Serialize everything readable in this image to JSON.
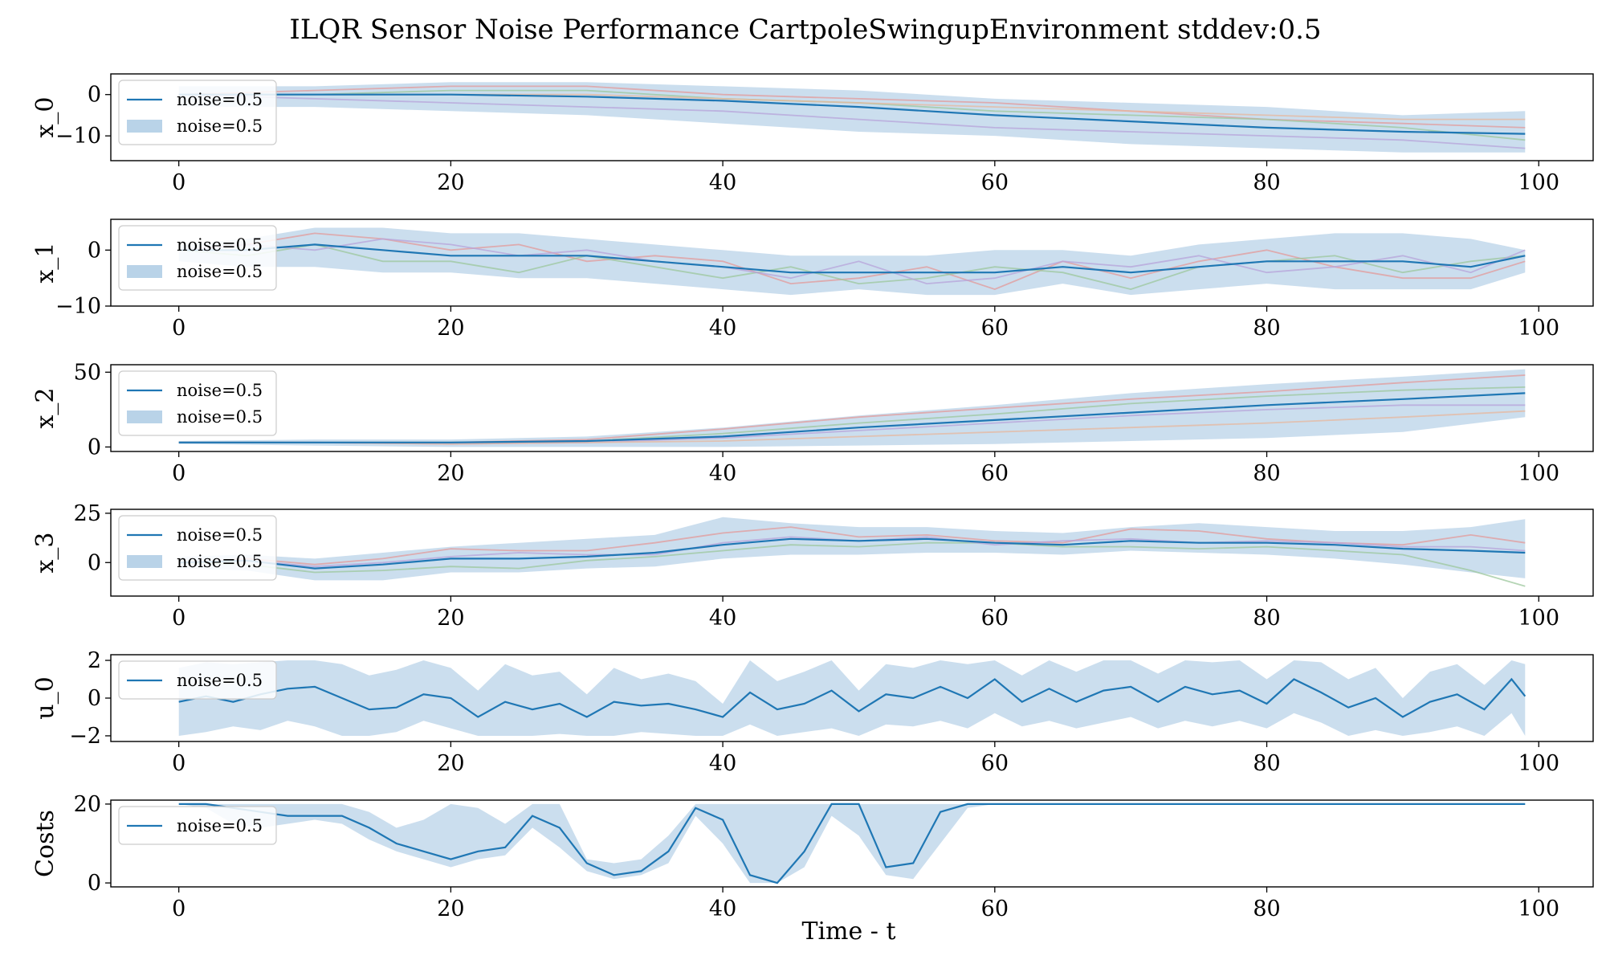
{
  "title": "ILQR Sensor Noise Performance CartpoleSwingupEnvironment stddev:0.5",
  "xlabel": "Time - t",
  "colors": {
    "mean_line": "#1f77b4",
    "band_fill": "#b9d3e8",
    "runs": [
      "#e39a9a",
      "#9cc79c",
      "#b7a3d9",
      "#e7b79e",
      "#c9b48f"
    ]
  },
  "chart_data": [
    {
      "type": "line",
      "ylabel": "x_0",
      "xlim": [
        -5,
        104
      ],
      "ylim": [
        -16,
        5
      ],
      "xticks": [
        0,
        20,
        40,
        60,
        80,
        100
      ],
      "yticks": [
        -10,
        0
      ],
      "legend": {
        "position": "upper-left",
        "entries": [
          {
            "label": "noise=0.5",
            "kind": "line"
          },
          {
            "label": "noise=0.5",
            "kind": "band"
          }
        ]
      },
      "x": [
        0,
        10,
        20,
        30,
        40,
        50,
        60,
        70,
        80,
        90,
        99
      ],
      "mean": [
        0,
        0,
        0,
        -0.5,
        -1.5,
        -3,
        -5,
        -6.5,
        -8,
        -9,
        -9.5
      ],
      "band_low": [
        -3,
        -3,
        -4,
        -5,
        -7,
        -9,
        -10,
        -12,
        -13,
        -14,
        -14
      ],
      "band_high": [
        2,
        2,
        3,
        3,
        2,
        1,
        -1,
        -2,
        -3,
        -5,
        -4
      ],
      "runs": [
        [
          0,
          1,
          2,
          2,
          0,
          -1,
          -2,
          -4,
          -6,
          -7,
          -8
        ],
        [
          0,
          0,
          1,
          1,
          -1,
          -2,
          -4,
          -5,
          -6,
          -8,
          -11
        ],
        [
          0,
          -1,
          -2,
          -3,
          -4,
          -6,
          -8,
          -9,
          -10,
          -11,
          -13
        ],
        [
          0,
          0,
          0,
          0,
          -1,
          -2,
          -3,
          -4,
          -5,
          -6,
          -6
        ]
      ]
    },
    {
      "type": "line",
      "ylabel": "x_1",
      "xlim": [
        -5,
        104
      ],
      "ylim": [
        -10,
        5.5
      ],
      "xticks": [
        0,
        20,
        40,
        60,
        80,
        100
      ],
      "yticks": [
        -10,
        0
      ],
      "legend": {
        "position": "upper-left",
        "entries": [
          {
            "label": "noise=0.5",
            "kind": "line"
          },
          {
            "label": "noise=0.5",
            "kind": "band"
          }
        ]
      },
      "x": [
        0,
        5,
        10,
        15,
        20,
        25,
        30,
        35,
        40,
        45,
        50,
        55,
        60,
        65,
        70,
        75,
        80,
        85,
        90,
        95,
        99
      ],
      "mean": [
        0,
        0,
        1,
        0,
        -1,
        -1,
        -1,
        -2,
        -3,
        -4,
        -4,
        -4,
        -4,
        -3,
        -4,
        -3,
        -2,
        -2,
        -2,
        -3,
        -1
      ],
      "band_low": [
        -2,
        -3,
        -3,
        -4,
        -4,
        -5,
        -5,
        -6,
        -7,
        -8,
        -7,
        -8,
        -8,
        -6,
        -8,
        -7,
        -6,
        -7,
        -7,
        -7,
        -4
      ],
      "band_high": [
        1,
        2,
        4,
        4,
        3,
        3,
        2,
        1,
        0,
        -1,
        -1,
        -1,
        0,
        0,
        -1,
        1,
        2,
        3,
        3,
        2,
        0
      ],
      "runs": [
        [
          0,
          1,
          3,
          2,
          0,
          1,
          -2,
          -1,
          -2,
          -6,
          -5,
          -3,
          -7,
          -2,
          -5,
          -2,
          0,
          -3,
          -5,
          -5,
          -2
        ],
        [
          0,
          -1,
          1,
          -2,
          -2,
          -4,
          -1,
          -3,
          -5,
          -3,
          -6,
          -5,
          -3,
          -4,
          -7,
          -3,
          -2,
          -1,
          -4,
          -2,
          -1
        ],
        [
          0,
          1,
          0,
          2,
          1,
          -1,
          0,
          -2,
          -3,
          -5,
          -2,
          -6,
          -5,
          -2,
          -3,
          -1,
          -4,
          -3,
          -1,
          -4,
          0
        ]
      ]
    },
    {
      "type": "line",
      "ylabel": "x_2",
      "xlim": [
        -5,
        104
      ],
      "ylim": [
        -3,
        55
      ],
      "xticks": [
        0,
        20,
        40,
        60,
        80,
        100
      ],
      "yticks": [
        0,
        50
      ],
      "legend": {
        "position": "upper-left",
        "entries": [
          {
            "label": "noise=0.5",
            "kind": "line"
          },
          {
            "label": "noise=0.5",
            "kind": "band"
          }
        ]
      },
      "x": [
        0,
        10,
        20,
        30,
        40,
        50,
        60,
        70,
        80,
        90,
        99
      ],
      "mean": [
        3,
        3,
        3,
        4,
        7,
        13,
        18,
        23,
        28,
        32,
        36
      ],
      "band_low": [
        2,
        1,
        0,
        0,
        0,
        1,
        2,
        4,
        6,
        10,
        20
      ],
      "band_high": [
        4,
        5,
        5,
        7,
        13,
        21,
        28,
        36,
        42,
        47,
        52
      ],
      "runs": [
        [
          3,
          3,
          3,
          5,
          12,
          20,
          26,
          32,
          37,
          43,
          48
        ],
        [
          3,
          3,
          3,
          4,
          9,
          16,
          22,
          29,
          34,
          38,
          40
        ],
        [
          3,
          3,
          2,
          3,
          6,
          11,
          16,
          21,
          25,
          28,
          28
        ],
        [
          3,
          3,
          2,
          3,
          4,
          7,
          10,
          13,
          16,
          20,
          24
        ]
      ]
    },
    {
      "type": "line",
      "ylabel": "x_3",
      "xlim": [
        -5,
        104
      ],
      "ylim": [
        -17,
        27
      ],
      "xticks": [
        0,
        20,
        40,
        60,
        80,
        100
      ],
      "yticks": [
        0,
        25
      ],
      "legend": {
        "position": "upper-left",
        "entries": [
          {
            "label": "noise=0.5",
            "kind": "line"
          },
          {
            "label": "noise=0.5",
            "kind": "band"
          }
        ]
      },
      "x": [
        0,
        5,
        10,
        15,
        20,
        25,
        30,
        35,
        40,
        45,
        50,
        55,
        60,
        65,
        70,
        75,
        80,
        85,
        90,
        95,
        99
      ],
      "mean": [
        0,
        1,
        -3,
        -1,
        2,
        2,
        3,
        5,
        9,
        12,
        11,
        12,
        10,
        9,
        11,
        10,
        10,
        9,
        7,
        6,
        5
      ],
      "band_low": [
        -3,
        -4,
        -9,
        -9,
        -5,
        -5,
        -3,
        -2,
        2,
        4,
        4,
        5,
        5,
        4,
        6,
        5,
        4,
        2,
        -1,
        -5,
        -8
      ],
      "band_high": [
        3,
        4,
        2,
        5,
        8,
        10,
        12,
        14,
        23,
        20,
        18,
        18,
        16,
        15,
        18,
        20,
        18,
        16,
        16,
        18,
        22
      ],
      "runs": [
        [
          0,
          2,
          -1,
          2,
          7,
          6,
          6,
          10,
          15,
          18,
          13,
          14,
          11,
          10,
          17,
          16,
          12,
          10,
          9,
          14,
          10
        ],
        [
          0,
          -1,
          -5,
          -4,
          -2,
          -3,
          1,
          3,
          6,
          9,
          8,
          10,
          10,
          8,
          8,
          7,
          8,
          6,
          4,
          -4,
          -12
        ],
        [
          0,
          1,
          -2,
          0,
          3,
          5,
          4,
          4,
          10,
          13,
          11,
          13,
          9,
          11,
          12,
          10,
          11,
          10,
          8,
          8,
          6
        ]
      ]
    },
    {
      "type": "line",
      "ylabel": "u_0",
      "xlim": [
        -5,
        104
      ],
      "ylim": [
        -2.3,
        2.3
      ],
      "xticks": [
        0,
        20,
        40,
        60,
        80,
        100
      ],
      "yticks": [
        -2,
        0,
        2
      ],
      "legend": {
        "position": "upper-left",
        "entries": [
          {
            "label": "noise=0.5",
            "kind": "line"
          }
        ]
      },
      "x": [
        0,
        2,
        4,
        6,
        8,
        10,
        12,
        14,
        16,
        18,
        20,
        22,
        24,
        26,
        28,
        30,
        32,
        34,
        36,
        38,
        40,
        42,
        44,
        46,
        48,
        50,
        52,
        54,
        56,
        58,
        60,
        62,
        64,
        66,
        68,
        70,
        72,
        74,
        76,
        78,
        80,
        82,
        84,
        86,
        88,
        90,
        92,
        94,
        96,
        98,
        99
      ],
      "mean": [
        -0.2,
        0.1,
        -0.2,
        0.2,
        0.5,
        0.6,
        0.0,
        -0.6,
        -0.5,
        0.2,
        0.0,
        -1.0,
        -0.2,
        -0.6,
        -0.3,
        -1.0,
        -0.2,
        -0.4,
        -0.3,
        -0.6,
        -1.0,
        0.3,
        -0.6,
        -0.3,
        0.4,
        -0.7,
        0.2,
        0.0,
        0.6,
        0.0,
        1.0,
        -0.2,
        0.5,
        -0.2,
        0.4,
        0.6,
        -0.2,
        0.6,
        0.2,
        0.4,
        -0.3,
        1.0,
        0.3,
        -0.5,
        0.0,
        -1.0,
        -0.2,
        0.2,
        -0.6,
        1.0,
        0.1
      ],
      "band_low": [
        -2.0,
        -1.8,
        -1.5,
        -1.7,
        -1.2,
        -1.5,
        -2.0,
        -2.0,
        -1.8,
        -1.2,
        -1.6,
        -2.0,
        -2.0,
        -2.0,
        -1.9,
        -2.0,
        -2.0,
        -1.8,
        -1.9,
        -2.0,
        -2.0,
        -1.4,
        -2.0,
        -1.8,
        -1.6,
        -2.0,
        -1.4,
        -1.5,
        -1.2,
        -1.6,
        -0.8,
        -1.5,
        -1.2,
        -1.6,
        -1.3,
        -1.0,
        -1.6,
        -1.2,
        -1.5,
        -1.2,
        -1.6,
        -0.8,
        -1.3,
        -2.0,
        -1.7,
        -2.0,
        -1.8,
        -1.5,
        -2.0,
        -0.8,
        -2.0
      ],
      "band_high": [
        1.6,
        1.9,
        1.8,
        1.9,
        2.0,
        2.0,
        1.8,
        1.2,
        1.5,
        2.0,
        1.6,
        0.4,
        1.8,
        1.2,
        1.4,
        0.2,
        1.6,
        1.0,
        1.3,
        0.9,
        -0.3,
        2.0,
        0.9,
        1.4,
        2.0,
        0.4,
        1.8,
        1.6,
        2.0,
        1.8,
        2.0,
        1.2,
        2.0,
        1.4,
        2.0,
        2.0,
        1.3,
        2.0,
        1.9,
        2.0,
        1.0,
        2.0,
        1.9,
        1.0,
        1.6,
        0.0,
        1.4,
        1.8,
        0.7,
        2.0,
        1.8
      ]
    },
    {
      "type": "line",
      "ylabel": "Costs",
      "xlim": [
        -5,
        104
      ],
      "ylim": [
        -1,
        21
      ],
      "xticks": [
        0,
        20,
        40,
        60,
        80,
        100
      ],
      "yticks": [
        0,
        20
      ],
      "legend": {
        "position": "upper-left",
        "entries": [
          {
            "label": "noise=0.5",
            "kind": "line"
          }
        ]
      },
      "x": [
        0,
        2,
        4,
        6,
        8,
        10,
        12,
        14,
        16,
        18,
        20,
        22,
        24,
        26,
        28,
        30,
        32,
        34,
        36,
        38,
        40,
        42,
        44,
        46,
        48,
        50,
        52,
        54,
        56,
        58,
        60,
        99
      ],
      "mean": [
        20,
        20,
        19,
        18,
        17,
        17,
        17,
        14,
        10,
        8,
        6,
        8,
        9,
        17,
        14,
        5,
        2,
        3,
        8,
        19,
        16,
        2,
        0,
        8,
        20,
        20,
        4,
        5,
        18,
        20,
        20,
        20
      ],
      "band_low": [
        20,
        19,
        15,
        14,
        15,
        16,
        15,
        11,
        8,
        6,
        4,
        6,
        7,
        14,
        9,
        3,
        1,
        2,
        5,
        17,
        10,
        0,
        0,
        4,
        17,
        12,
        2,
        1,
        10,
        19,
        20,
        20
      ],
      "band_high": [
        20,
        20,
        20,
        20,
        20,
        20,
        20,
        18,
        14,
        16,
        20,
        19,
        15,
        20,
        20,
        6,
        5,
        6,
        12,
        20,
        20,
        20,
        20,
        20,
        20,
        20,
        20,
        20,
        20,
        20,
        20,
        20
      ]
    }
  ]
}
